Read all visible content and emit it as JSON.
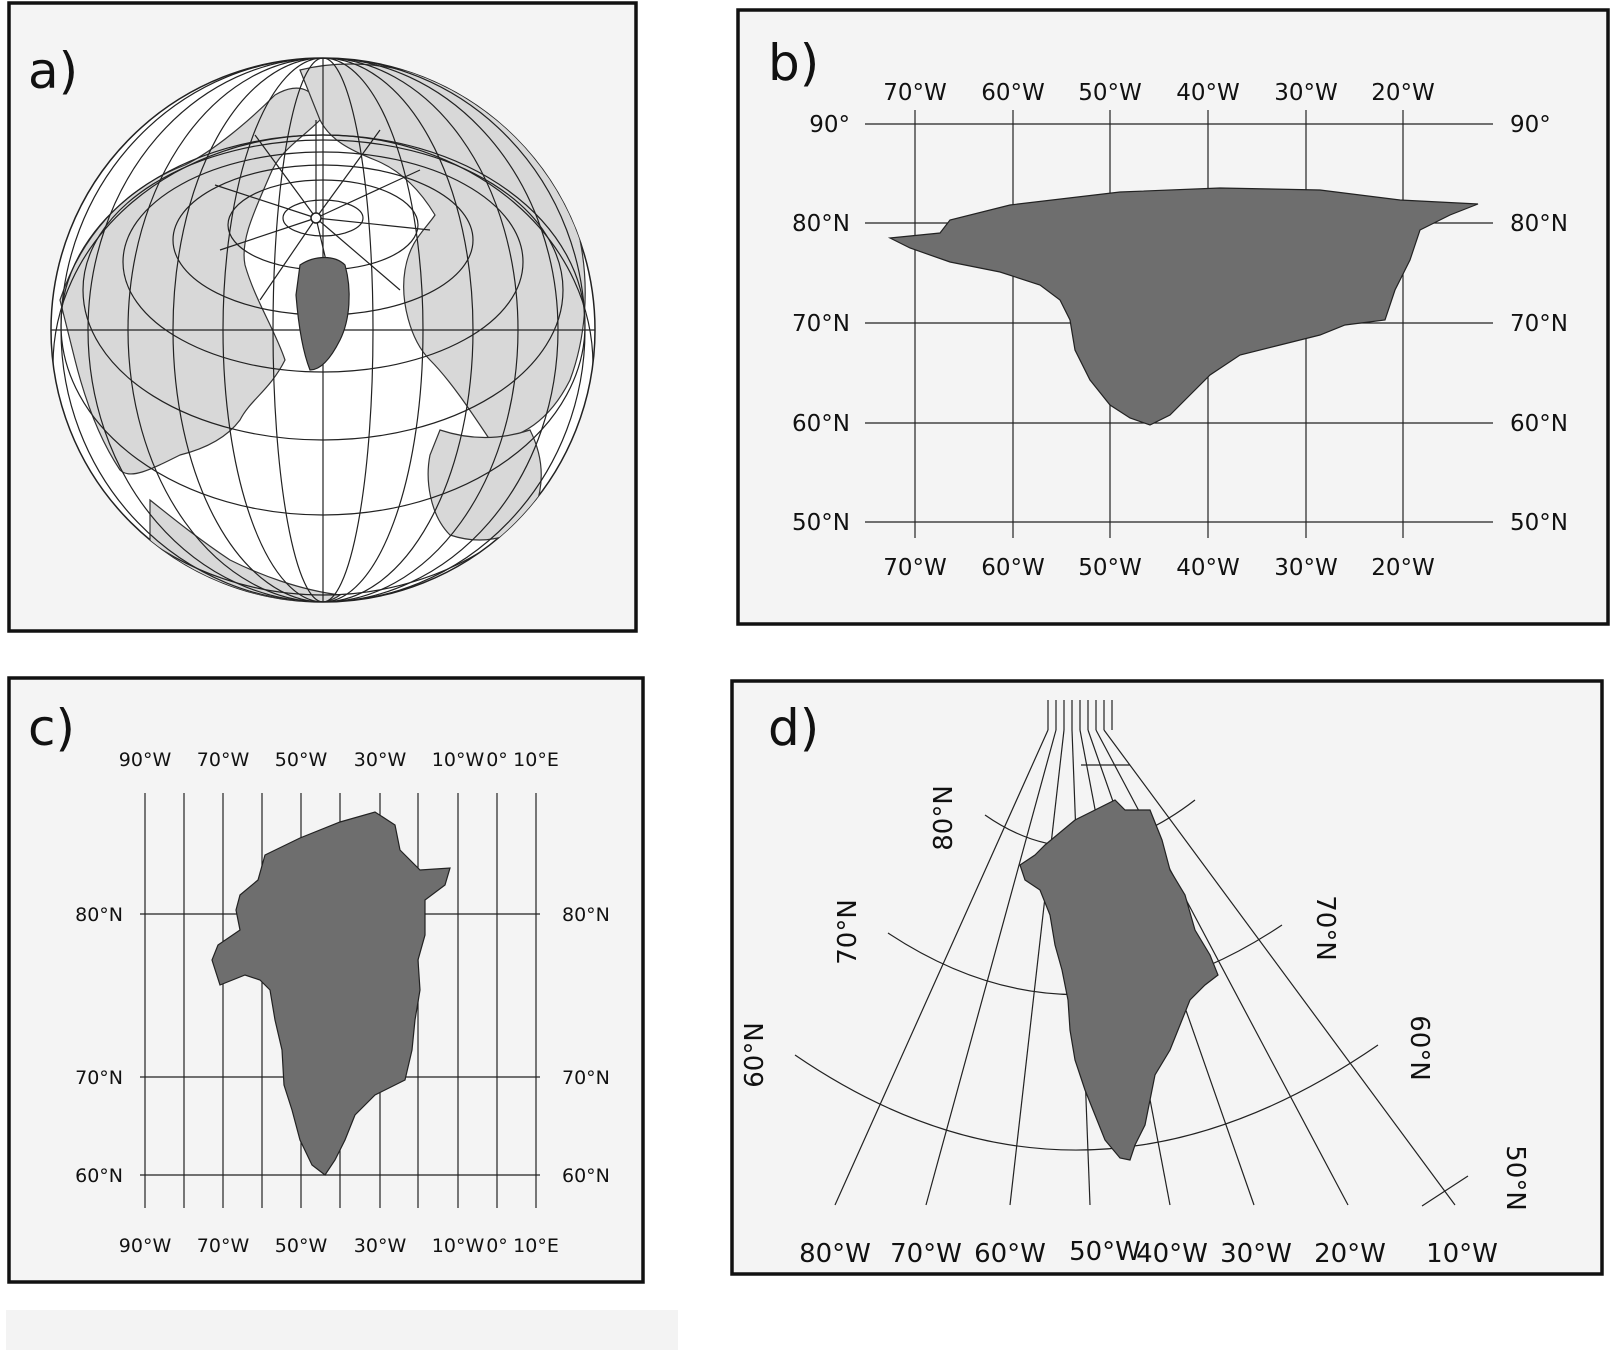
{
  "panels": {
    "a": {
      "label": "a)"
    },
    "b": {
      "label": "b)",
      "lon_labels": [
        "70°W",
        "60°W",
        "50°W",
        "40°W",
        "30°W",
        "20°W"
      ],
      "lat_labels_left": [
        "90°",
        "80°N",
        "70°N",
        "60°N",
        "50°N"
      ],
      "lat_labels_right": [
        "90°",
        "80°N",
        "70°N",
        "60°N",
        "50°N"
      ]
    },
    "c": {
      "label": "c)",
      "lon_labels": [
        "90°W",
        "70°W",
        "50°W",
        "30°W",
        "10°W",
        "0°",
        "10°E"
      ],
      "lat_labels": [
        "80°N",
        "70°N",
        "60°N"
      ]
    },
    "d": {
      "label": "d)",
      "lat_labels": [
        "80°N",
        "70°N",
        "70°N",
        "60°N",
        "60°N",
        "50°N"
      ],
      "lon_labels": [
        "80°W",
        "70°W",
        "60°W",
        "50°W",
        "40°W",
        "30°W",
        "20°W",
        "10°W"
      ]
    }
  },
  "colors": {
    "greenland": "#6e6e6e",
    "land": "#d8d8d8",
    "background": "#f4f4f4"
  }
}
